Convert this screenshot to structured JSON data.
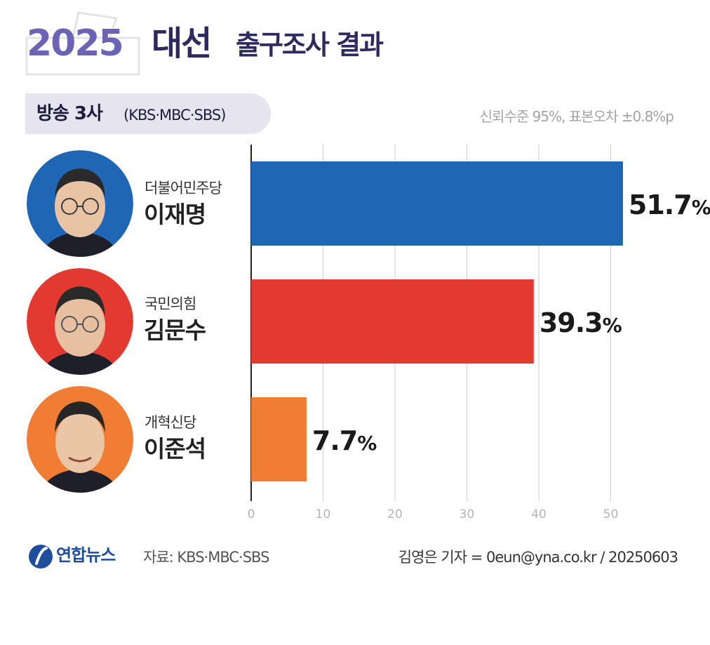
{
  "title": {
    "year": "2025",
    "election": "대선",
    "rest": "출구조사 결과"
  },
  "source_pill": {
    "main": "방송 3사",
    "sub": "(KBS·MBC·SBS)"
  },
  "confidence": "신뢰수준 95%, 표본오차 ±0.8%p",
  "chart_data": {
    "type": "bar",
    "orientation": "horizontal",
    "categories": [
      "이재명",
      "김문수",
      "이준석"
    ],
    "parties": [
      "더불어민주당",
      "국민의힘",
      "개혁신당"
    ],
    "values": [
      51.7,
      39.3,
      7.7
    ],
    "value_labels": [
      "51.7",
      "39.3",
      "7.7"
    ],
    "unit": "%",
    "colors": [
      "#1f67b4",
      "#e23a30",
      "#f07d33"
    ],
    "xlim": [
      0,
      52
    ],
    "xticks": [
      0,
      10,
      20,
      30,
      40,
      50
    ],
    "grid": true
  },
  "candidates": [
    {
      "party": "더불어민주당",
      "name": "이재명",
      "avatar_color": "#1f67b4"
    },
    {
      "party": "국민의힘",
      "name": "김문수",
      "avatar_color": "#e23a30"
    },
    {
      "party": "개혁신당",
      "name": "이준석",
      "avatar_color": "#f07d33"
    }
  ],
  "footer": {
    "logo": "연합뉴스",
    "source": "자료: KBS·MBC·SBS",
    "credit": "김영은 기자 = 0eun@yna.co.kr / 20250603"
  }
}
